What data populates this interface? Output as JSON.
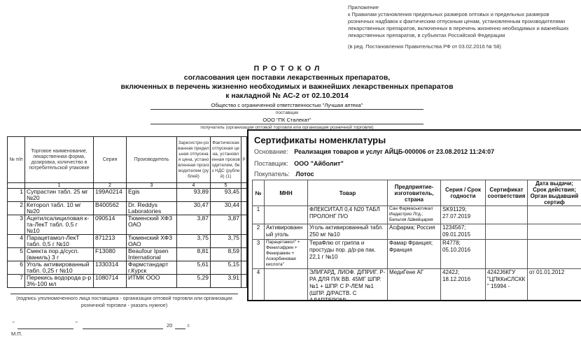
{
  "appendix": {
    "title": "Приложение",
    "text": "к Правилам установления предельных размеров оптовых и предельных размеров розничных надбавок к фактическим отпускным ценам, установленным производителями лекарственных препаратов, включенных в перечень жизненно необходимых и важнейших лекарственных препаратов, в субъектах Российской Федерации",
    "edition": "(в ред. Постановления Правительства РФ от 03.02.2016 № 58)"
  },
  "protocol": {
    "title": "П Р О Т О К О Л",
    "line1": "согласования цен поставки лекарственных препаратов,",
    "line2": "включенных в перечень жизненно необходимых и важнейших лекарственных препаратов",
    "line3": "к накладной № АС-2 от 02.10.2014",
    "supplier": "Общество с ограниченной ответственностью \"Лучшая аптека\"",
    "supplier_caption": "поставщик",
    "recipient": "ООО \"ПК Сталекат\"",
    "recipient_caption": "получатель (организация оптовой торговли или организация розничной торговли)",
    "headers": [
      "№ п/п",
      "Торговое наименование, лекарственная форма, дозировка, количество в потребительской упаковке",
      "Серия",
      "Производитель",
      "Зарегистри-рованная предельная отпускная цена, установленная производителем (рублей)",
      "Фактическая отпускная цена, установленная производителем, без НДС (рублей) (1)",
      "Р"
    ],
    "col_numbers": [
      "",
      "1",
      "2",
      "3",
      "4",
      "5"
    ],
    "rows": [
      {
        "n": "1",
        "name": "Супрастин табл. 25 мг №20",
        "series": "199A0214",
        "maker": "Egis",
        "reg": "93,89",
        "fact": "93,45"
      },
      {
        "n": "2",
        "name": "Кеторол табл. 10 мг №20",
        "series": "B400562",
        "maker": "Dr. Reddys Laboratories",
        "reg": "30,47",
        "fact": "30,44"
      },
      {
        "n": "3",
        "name": "Ацетилсалициловая к-та-ЛекТ табл. 0,5 г №10",
        "series": "090514",
        "maker": "Тюменский ХФЗ ОАО",
        "reg": "3,87",
        "fact": "3,87"
      },
      {
        "n": "4",
        "name": "Парацетамол-ЛекТ табл. 0,5 г №10",
        "series": "871213",
        "maker": "Тюменский ХФЗ ОАО",
        "reg": "3,75",
        "fact": "3,75"
      },
      {
        "n": "5",
        "name": "Смекта пор.д/сусп. (ваниль) 3 г",
        "series": "F13080",
        "maker": "Beaufour Ipsen International",
        "reg": "8,81",
        "fact": "8,59"
      },
      {
        "n": "6",
        "name": "Уголь активированный табл. 0,25 г №10",
        "series": "1330314",
        "maker": "Фармстандарт г.Курск",
        "reg": "5,61",
        "fact": "5,15"
      },
      {
        "n": "7",
        "name": "Перекись водорода р-р 3%-100 мл",
        "series": "1080714",
        "maker": "ИТМК ООО",
        "reg": "5,29",
        "fact": "3,91"
      }
    ],
    "signature_caption": "(подпись уполномоченного лица поставщика - организации оптовой торговли или организации розничной торговли - указать нужное)",
    "date_quote1": "\"",
    "date_quote2": "\"",
    "date_year": "20",
    "date_g": "г.",
    "stamp": "М.П."
  },
  "certificates": {
    "title": "Сертификаты номенклатуры",
    "basis_label": "Основание:",
    "basis": "Реализация товаров и услуг АЙЦБ-000006 от 23.08.2012 11:24:07",
    "supplier_label": "Поставщик:",
    "supplier": "ООО \"Айболит\"",
    "buyer_label": "Покупатель:",
    "buyer": "Лотос",
    "headers": [
      "№",
      "МНН",
      "Товар",
      "Предприятие-изготовитель, страна",
      "Серия / Срок годности",
      "Сертификат соответствия",
      "Дата выдачи; Срок действия; Орган выдавший сертиф"
    ],
    "rows": [
      {
        "n": "1",
        "mnn": "",
        "product": "ФЛЕКСИТАЛ 0,4 N20 ТАБЛ ПРОЛОНГ П/О",
        "maker": "Сан Фармасьютикал Индастриз Лтд.; Бельгия /Швейцария",
        "series": "SK91129; 27.07.2019",
        "cert": "",
        "date": ""
      },
      {
        "n": "2",
        "mnn": "Активированный уголь",
        "product": "Уголь активированный табл. 250 мг №10",
        "maker": "Асфарма; Россия",
        "series": "1234567; 09.01.2015",
        "cert": "",
        "date": ""
      },
      {
        "n": "3",
        "mnn": "Парацетамол\" + Фенилэфрин + Фенирамин + Аскорбиновая кислота\"",
        "product": "ТераФлю от гриппа и простуды пор. д/р-ра пак. 22,1 г №10",
        "maker": "Фамар Франция; Франция",
        "series": "R4778; 05.10.2016",
        "cert": "",
        "date": ""
      },
      {
        "n": "4",
        "mnn": "",
        "product": "ЭЛИГАРД, ЛИОФ. Д/ПРИГ. Р-РА ДЛЯ П/К ВВ. 45МГ ШПР. №1 + ШПР. С Р-ЛЕМ №1 (ШПР. Д/РАСТВ. С АДАПТЕРОМ)",
        "maker": "МедиГене АГ",
        "series": "4242J; 18.12.2016",
        "cert": "4242J6КГУ \"ЦПККиСЛСКК\" 15994 -",
        "date": "от 01.01.2012"
      }
    ]
  }
}
